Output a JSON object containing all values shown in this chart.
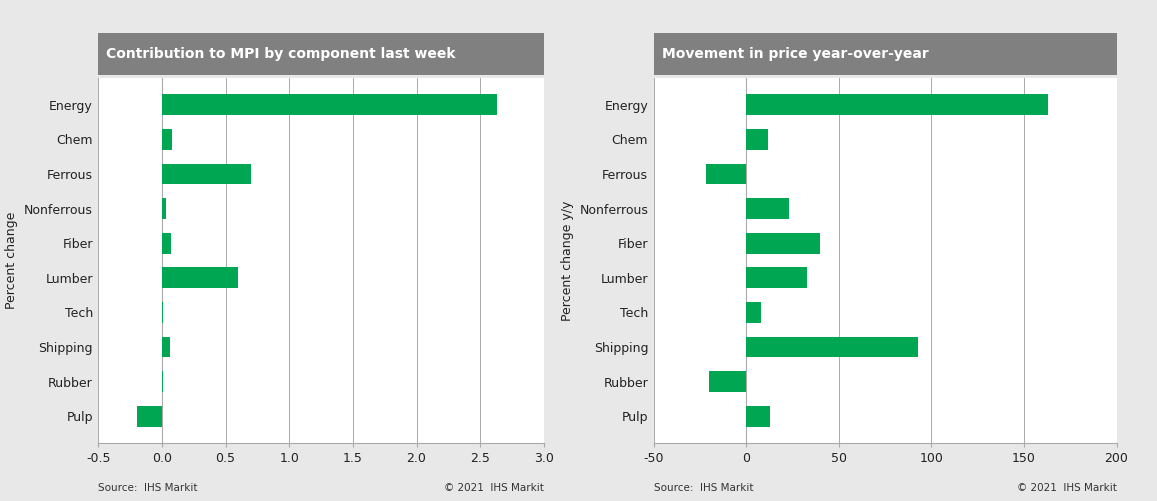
{
  "categories": [
    "Energy",
    "Chem",
    "Ferrous",
    "Nonferrous",
    "Fiber",
    "Lumber",
    "Tech",
    "Shipping",
    "Rubber",
    "Pulp"
  ],
  "left_values": [
    2.63,
    0.08,
    0.7,
    0.03,
    0.07,
    0.6,
    0.01,
    0.06,
    0.01,
    -0.2
  ],
  "right_values": [
    163,
    12,
    -22,
    23,
    40,
    33,
    8,
    93,
    -20,
    13
  ],
  "left_title": "Contribution to MPI by component last week",
  "right_title": "Movement in price year-over-year",
  "left_ylabel": "Percent change",
  "right_ylabel": "Percent change y/y",
  "left_xlim": [
    -0.5,
    3.0
  ],
  "right_xlim": [
    -50,
    200
  ],
  "left_xticks": [
    -0.5,
    0.0,
    0.5,
    1.0,
    1.5,
    2.0,
    2.5,
    3.0
  ],
  "left_xticklabels": [
    "-0.5",
    "0.0",
    "0.5",
    "1.0",
    "1.5",
    "2.0",
    "2.5",
    "3.0"
  ],
  "right_xticks": [
    -50,
    0,
    50,
    100,
    150,
    200
  ],
  "right_xticklabels": [
    "-50",
    "0",
    "50",
    "100",
    "150",
    "200"
  ],
  "bar_color": "#00a651",
  "panel_bg": "#e8e8e8",
  "plot_bg": "#ffffff",
  "title_bg_color": "#808080",
  "title_text_color": "#ffffff",
  "source_left": "Source:  IHS Markit",
  "copy_left": "© 2021  IHS Markit",
  "source_right": "Source:  IHS Markit",
  "copy_right": "© 2021  IHS Markit"
}
